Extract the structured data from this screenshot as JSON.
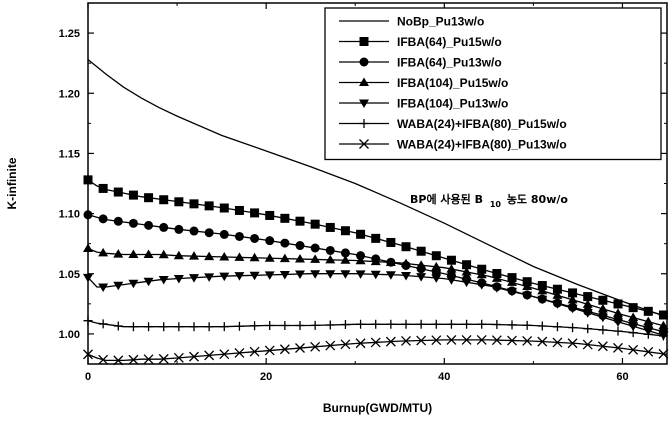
{
  "chart_data": {
    "type": "line",
    "xlabel": "Burnup(GWD/MTU)",
    "ylabel": "K-infinite",
    "xlim": [
      0,
      65
    ],
    "ylim": [
      0.975,
      1.275
    ],
    "x_ticks": [
      0,
      20,
      40,
      60
    ],
    "y_ticks": [
      1.0,
      1.05,
      1.1,
      1.15,
      1.2,
      1.25
    ],
    "x_tick_labels": [
      "0",
      "20",
      "40",
      "60"
    ],
    "y_tick_labels": [
      "1.00",
      "1.05",
      "1.10",
      "1.15",
      "1.20",
      "1.25"
    ],
    "grid": false,
    "legend_position": "top-right",
    "annotation": {
      "text": "BP에 사용된 B",
      "subscript": "10",
      "suffix": "농도 80w/o"
    },
    "series": [
      {
        "name": "NoBp_Pu13w/o",
        "marker": "none",
        "points": [
          [
            0,
            1.228
          ],
          [
            1,
            1.222
          ],
          [
            2,
            1.216
          ],
          [
            4,
            1.205
          ],
          [
            6,
            1.196
          ],
          [
            8,
            1.188
          ],
          [
            10,
            1.181
          ],
          [
            15,
            1.165
          ],
          [
            20,
            1.152
          ],
          [
            25,
            1.139
          ],
          [
            30,
            1.125
          ],
          [
            35,
            1.109
          ],
          [
            40,
            1.092
          ],
          [
            45,
            1.074
          ],
          [
            50,
            1.056
          ],
          [
            55,
            1.041
          ],
          [
            60,
            1.027
          ],
          [
            65,
            1.014
          ]
        ]
      },
      {
        "name": "IFBA(64)_Pu15w/o",
        "marker": "square",
        "points": [
          [
            0,
            1.128
          ],
          [
            1,
            1.123
          ],
          [
            2,
            1.12
          ],
          [
            4,
            1.117
          ],
          [
            6,
            1.114
          ],
          [
            8,
            1.112
          ],
          [
            10,
            1.11
          ],
          [
            15,
            1.105
          ],
          [
            20,
            1.099
          ],
          [
            25,
            1.092
          ],
          [
            30,
            1.084
          ],
          [
            35,
            1.074
          ],
          [
            40,
            1.063
          ],
          [
            45,
            1.052
          ],
          [
            50,
            1.042
          ],
          [
            55,
            1.033
          ],
          [
            60,
            1.024
          ],
          [
            65,
            1.015
          ]
        ]
      },
      {
        "name": "IFBA(64)_Pu13w/o",
        "marker": "circle",
        "points": [
          [
            0,
            1.099
          ],
          [
            1,
            1.097
          ],
          [
            2,
            1.095
          ],
          [
            4,
            1.093
          ],
          [
            6,
            1.091
          ],
          [
            8,
            1.089
          ],
          [
            10,
            1.087
          ],
          [
            15,
            1.083
          ],
          [
            20,
            1.078
          ],
          [
            25,
            1.072
          ],
          [
            30,
            1.066
          ],
          [
            35,
            1.058
          ],
          [
            40,
            1.05
          ],
          [
            45,
            1.041
          ],
          [
            50,
            1.031
          ],
          [
            55,
            1.021
          ],
          [
            60,
            1.011
          ],
          [
            65,
            1.001
          ]
        ]
      },
      {
        "name": "IFBA(104)_Pu15w/o",
        "marker": "triangle-up",
        "points": [
          [
            0,
            1.071
          ],
          [
            1,
            1.068
          ],
          [
            2,
            1.067
          ],
          [
            4,
            1.066
          ],
          [
            6,
            1.066
          ],
          [
            8,
            1.066
          ],
          [
            10,
            1.065
          ],
          [
            15,
            1.064
          ],
          [
            20,
            1.063
          ],
          [
            25,
            1.062
          ],
          [
            30,
            1.061
          ],
          [
            35,
            1.059
          ],
          [
            40,
            1.055
          ],
          [
            45,
            1.048
          ],
          [
            50,
            1.038
          ],
          [
            55,
            1.027
          ],
          [
            60,
            1.016
          ],
          [
            65,
            1.006
          ]
        ]
      },
      {
        "name": "IFBA(104)_Pu13w/o",
        "marker": "triangle-down",
        "points": [
          [
            0,
            1.047
          ],
          [
            1,
            1.039
          ],
          [
            2,
            1.039
          ],
          [
            4,
            1.041
          ],
          [
            6,
            1.043
          ],
          [
            8,
            1.045
          ],
          [
            10,
            1.046
          ],
          [
            15,
            1.048
          ],
          [
            20,
            1.049
          ],
          [
            25,
            1.05
          ],
          [
            30,
            1.05
          ],
          [
            35,
            1.049
          ],
          [
            40,
            1.046
          ],
          [
            45,
            1.04
          ],
          [
            50,
            1.031
          ],
          [
            55,
            1.02
          ],
          [
            60,
            1.009
          ],
          [
            65,
            0.998
          ]
        ]
      },
      {
        "name": "WABA(24)+IFBA(80)_Pu15w/o",
        "marker": "plus",
        "points": [
          [
            0,
            1.011
          ],
          [
            1,
            1.009
          ],
          [
            2,
            1.008
          ],
          [
            4,
            1.006
          ],
          [
            6,
            1.006
          ],
          [
            8,
            1.006
          ],
          [
            10,
            1.006
          ],
          [
            15,
            1.006
          ],
          [
            20,
            1.007
          ],
          [
            25,
            1.007
          ],
          [
            30,
            1.008
          ],
          [
            35,
            1.008
          ],
          [
            40,
            1.008
          ],
          [
            45,
            1.008
          ],
          [
            50,
            1.007
          ],
          [
            55,
            1.005
          ],
          [
            60,
            1.002
          ],
          [
            65,
            0.998
          ]
        ]
      },
      {
        "name": "WABA(24)+IFBA(80)_Pu13w/o",
        "marker": "x",
        "points": [
          [
            0,
            0.983
          ],
          [
            1,
            0.98
          ],
          [
            2,
            0.978
          ],
          [
            4,
            0.978
          ],
          [
            6,
            0.979
          ],
          [
            8,
            0.979
          ],
          [
            10,
            0.98
          ],
          [
            15,
            0.983
          ],
          [
            20,
            0.986
          ],
          [
            25,
            0.989
          ],
          [
            30,
            0.992
          ],
          [
            35,
            0.994
          ],
          [
            40,
            0.995
          ],
          [
            45,
            0.995
          ],
          [
            50,
            0.994
          ],
          [
            55,
            0.992
          ],
          [
            60,
            0.988
          ],
          [
            65,
            0.983
          ]
        ]
      }
    ]
  }
}
